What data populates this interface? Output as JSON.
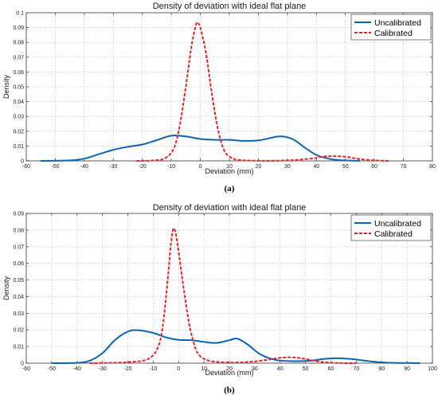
{
  "chart_data": [
    {
      "type": "line",
      "panel_label": "(a)",
      "title": "Density of deviation with ideal flat plane",
      "xlabel": "Deviation (mm)",
      "ylabel": "Density",
      "xlim": [
        -60,
        80
      ],
      "ylim": [
        0,
        0.1
      ],
      "x_ticks": [
        -60,
        -50,
        -40,
        -30,
        -20,
        -10,
        0,
        10,
        20,
        30,
        40,
        50,
        60,
        70,
        80
      ],
      "y_ticks": [
        0,
        0.01,
        0.02,
        0.03,
        0.04,
        0.05,
        0.06,
        0.07,
        0.08,
        0.09,
        0.1
      ],
      "grid": true,
      "legend_position": "top-right",
      "series": [
        {
          "name": "Uncalibrated",
          "color": "#0a64b4",
          "style": "solid",
          "points": [
            [
              -55,
              0
            ],
            [
              -45,
              0.0003
            ],
            [
              -40,
              0.0015
            ],
            [
              -35,
              0.0045
            ],
            [
              -30,
              0.0075
            ],
            [
              -25,
              0.0095
            ],
            [
              -20,
              0.011
            ],
            [
              -15,
              0.014
            ],
            [
              -10,
              0.017
            ],
            [
              -5,
              0.0165
            ],
            [
              0,
              0.0148
            ],
            [
              5,
              0.0142
            ],
            [
              10,
              0.0142
            ],
            [
              15,
              0.0135
            ],
            [
              20,
              0.0138
            ],
            [
              25,
              0.0158
            ],
            [
              28,
              0.0165
            ],
            [
              32,
              0.0145
            ],
            [
              36,
              0.009
            ],
            [
              40,
              0.004
            ],
            [
              45,
              0.0012
            ],
            [
              50,
              0.0003
            ],
            [
              55,
              0
            ]
          ]
        },
        {
          "name": "Calibrated",
          "color": "#ee2222",
          "style": "dashed",
          "points": [
            [
              -22,
              0
            ],
            [
              -16,
              0.0003
            ],
            [
              -12,
              0.002
            ],
            [
              -9,
              0.009
            ],
            [
              -7,
              0.025
            ],
            [
              -5,
              0.05
            ],
            [
              -3,
              0.078
            ],
            [
              -1.5,
              0.092
            ],
            [
              -1,
              0.093
            ],
            [
              0,
              0.09
            ],
            [
              2,
              0.072
            ],
            [
              4,
              0.045
            ],
            [
              6,
              0.022
            ],
            [
              8,
              0.008
            ],
            [
              10,
              0.003
            ],
            [
              13,
              0.0007
            ],
            [
              20,
              0.0001
            ],
            [
              30,
              0.0003
            ],
            [
              38,
              0.0015
            ],
            [
              43,
              0.003
            ],
            [
              47,
              0.0032
            ],
            [
              51,
              0.0025
            ],
            [
              55,
              0.0012
            ],
            [
              60,
              0.0003
            ],
            [
              65,
              0
            ]
          ]
        }
      ]
    },
    {
      "type": "line",
      "panel_label": "(b)",
      "title": "Density of deviation with ideal flat plane",
      "xlabel": "Deviation (mm)",
      "ylabel": "Density",
      "xlim": [
        -60,
        100
      ],
      "ylim": [
        0,
        0.09
      ],
      "x_ticks": [
        -60,
        -50,
        -40,
        -30,
        -20,
        -10,
        0,
        10,
        20,
        30,
        40,
        50,
        60,
        70,
        80,
        90,
        100
      ],
      "y_ticks": [
        0,
        0.01,
        0.02,
        0.03,
        0.04,
        0.05,
        0.06,
        0.07,
        0.08,
        0.09
      ],
      "grid": true,
      "legend_position": "top-right",
      "series": [
        {
          "name": "Uncalibrated",
          "color": "#0a64b4",
          "style": "solid",
          "points": [
            [
              -50,
              0
            ],
            [
              -40,
              0.0002
            ],
            [
              -35,
              0.0015
            ],
            [
              -30,
              0.006
            ],
            [
              -25,
              0.014
            ],
            [
              -20,
              0.019
            ],
            [
              -16,
              0.0198
            ],
            [
              -10,
              0.0182
            ],
            [
              -5,
              0.0155
            ],
            [
              0,
              0.014
            ],
            [
              5,
              0.0138
            ],
            [
              10,
              0.0128
            ],
            [
              15,
              0.0122
            ],
            [
              20,
              0.0138
            ],
            [
              23,
              0.0148
            ],
            [
              27,
              0.0115
            ],
            [
              32,
              0.0055
            ],
            [
              38,
              0.002
            ],
            [
              45,
              0.0012
            ],
            [
              52,
              0.0015
            ],
            [
              57,
              0.0025
            ],
            [
              62,
              0.003
            ],
            [
              68,
              0.0025
            ],
            [
              75,
              0.0012
            ],
            [
              82,
              0.0003
            ],
            [
              95,
              0
            ]
          ]
        },
        {
          "name": "Calibrated",
          "color": "#ee2222",
          "style": "dashed",
          "points": [
            [
              -35,
              0
            ],
            [
              -28,
              0.0002
            ],
            [
              -20,
              0.0006
            ],
            [
              -12,
              0.0025
            ],
            [
              -8,
              0.01
            ],
            [
              -6,
              0.025
            ],
            [
              -4,
              0.055
            ],
            [
              -3,
              0.072
            ],
            [
              -2,
              0.081
            ],
            [
              -1,
              0.077
            ],
            [
              0,
              0.067
            ],
            [
              2,
              0.045
            ],
            [
              4,
              0.025
            ],
            [
              6,
              0.012
            ],
            [
              8,
              0.005
            ],
            [
              12,
              0.0015
            ],
            [
              20,
              0.0004
            ],
            [
              28,
              0.0008
            ],
            [
              35,
              0.002
            ],
            [
              40,
              0.0032
            ],
            [
              45,
              0.0035
            ],
            [
              50,
              0.0025
            ],
            [
              56,
              0.0008
            ],
            [
              63,
              0.0001
            ],
            [
              70,
              0
            ]
          ]
        }
      ]
    }
  ]
}
